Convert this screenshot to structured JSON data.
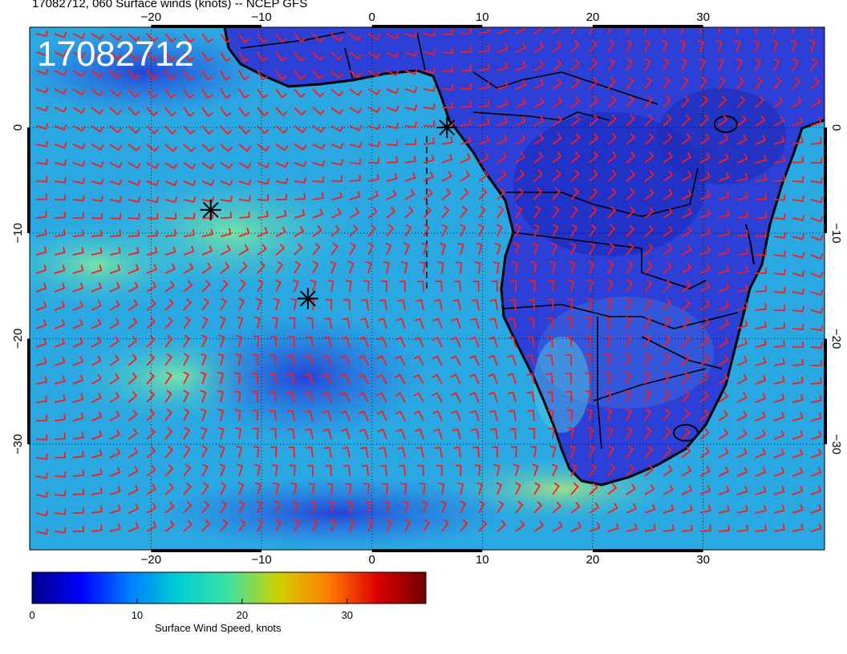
{
  "title": "17082712, 060 Surface winds (knots) -- NCEP GFS",
  "stamp": "17082712",
  "map": {
    "lon_range": [
      -31,
      41
    ],
    "lat_range": [
      -40,
      9.5
    ],
    "lon_ticks": [
      -20,
      -10,
      0,
      10,
      20,
      30
    ],
    "lat_ticks": [
      0,
      -10,
      -20,
      -30
    ],
    "lon_tick_labels": [
      "−20",
      "−10",
      "0",
      "10",
      "20",
      "30"
    ],
    "lat_tick_labels": [
      "0",
      "−10",
      "−20",
      "−30"
    ],
    "gridlines": true,
    "barb_color": "#ff1a1a",
    "coast_color": "#000000",
    "markers": [
      {
        "lon": 6.8,
        "lat": 0.0
      },
      {
        "lon": -14.6,
        "lat": -7.8
      },
      {
        "lon": -5.8,
        "lat": -16.2
      }
    ]
  },
  "colorbar": {
    "label": "Surface Wind Speed, knots",
    "range": [
      0,
      37.5
    ],
    "ticks": [
      0,
      10,
      20,
      30
    ],
    "tick_labels": [
      "0",
      "10",
      "20",
      "30"
    ],
    "colors": [
      "#00008a",
      "#0000ff",
      "#0080ff",
      "#00d0d0",
      "#40e0a0",
      "#d0d000",
      "#ff8000",
      "#e00000",
      "#700000"
    ]
  }
}
